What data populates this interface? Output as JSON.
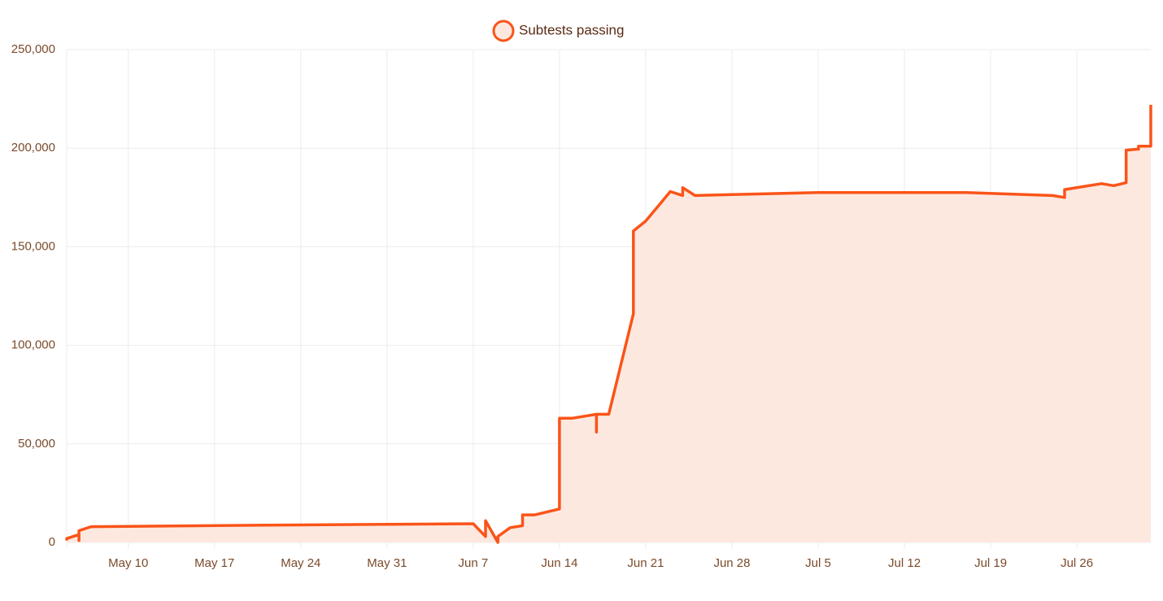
{
  "chart_data": {
    "type": "line",
    "series": [
      {
        "name": "Subtests passing",
        "color": "#fa5419",
        "fill": "#fde8e0",
        "x": [
          "May 5",
          "May 5",
          "May 6",
          "May 6",
          "May 6",
          "May 6",
          "May 7",
          "May 20",
          "Jun 7",
          "Jun 8",
          "Jun 8",
          "Jun 8",
          "Jun 9",
          "Jun 9",
          "Jun 10",
          "Jun 11",
          "Jun 11",
          "Jun 12",
          "Jun 14",
          "Jun 14",
          "Jun 14",
          "Jun 14",
          "Jun 15",
          "Jun 17",
          "Jun 17",
          "Jun 17",
          "Jun 18",
          "Jun 20",
          "Jun 20",
          "Jun 20",
          "Jun 20",
          "Jun 21",
          "Jun 23",
          "Jun 24",
          "Jun 24",
          "Jun 25",
          "Jun 28",
          "Jul 5",
          "Jul 17",
          "Jul 24",
          "Jul 25",
          "Jul 25",
          "Jul 28",
          "Jul 29",
          "Jul 30",
          "Jul 30",
          "Jul 31",
          "Jul 31",
          "Aug 1",
          "Aug 1"
        ],
        "values": [
          1000,
          2000,
          4000,
          1000,
          6000,
          6000,
          8000,
          8700,
          9500,
          3000,
          11000,
          11000,
          0,
          3000,
          7500,
          8500,
          14000,
          14000,
          17000,
          20000,
          18000,
          63000,
          63000,
          65000,
          56000,
          65000,
          65000,
          116000,
          138000,
          143000,
          158000,
          163000,
          178000,
          176000,
          180000,
          176000,
          176500,
          177500,
          177500,
          176000,
          175000,
          179000,
          182000,
          181000,
          182500,
          199000,
          199500,
          201000,
          201000,
          222000
        ]
      }
    ],
    "xlim": [
      "May 5",
      "Aug 1"
    ],
    "xticks": [
      "May 10",
      "May 17",
      "May 24",
      "May 31",
      "Jun 7",
      "Jun 14",
      "Jun 21",
      "Jun 28",
      "Jul 5",
      "Jul 12",
      "Jul 19",
      "Jul 26"
    ],
    "ylim": [
      0,
      250000
    ],
    "yticks": [
      0,
      {
        "value": 50000,
        "label": "50,000"
      },
      {
        "value": 100000,
        "label": "100,000"
      },
      {
        "value": 150000,
        "label": "150,000"
      },
      {
        "value": 200000,
        "label": "200,000"
      },
      {
        "value": 250000,
        "label": "250,000"
      }
    ],
    "grid": true,
    "legend": "top"
  }
}
